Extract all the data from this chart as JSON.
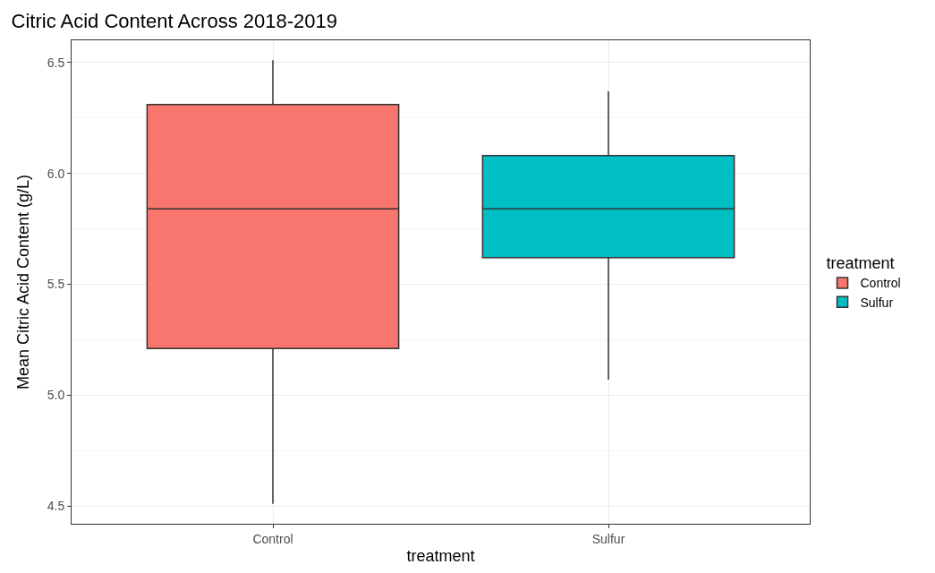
{
  "chart_data": {
    "type": "box",
    "title": "Citric Acid Content Across 2018-2019",
    "xlabel": "treatment",
    "ylabel": "Mean Citric Acid Content (g/L)",
    "legend_title": "treatment",
    "categories": [
      "Control",
      "Sulfur"
    ],
    "series": [
      {
        "name": "Control",
        "color": "#f8766d",
        "boxes": [
          {
            "low": 4.51,
            "q1": 5.21,
            "median": 5.84,
            "q3": 6.31,
            "high": 6.51
          },
          null
        ]
      },
      {
        "name": "Sulfur",
        "color": "#00bfc4",
        "boxes": [
          null,
          {
            "low": 5.07,
            "q1": 5.62,
            "median": 5.84,
            "q3": 6.08,
            "high": 6.37
          }
        ]
      }
    ],
    "ylim": [
      4.42,
      6.6
    ],
    "yticks": [
      4.5,
      {
        "value": 5.0,
        "label": "5.0"
      },
      5.5,
      {
        "value": 6.0,
        "label": "6.0"
      },
      6.5
    ],
    "grid": true,
    "legend": "right"
  }
}
